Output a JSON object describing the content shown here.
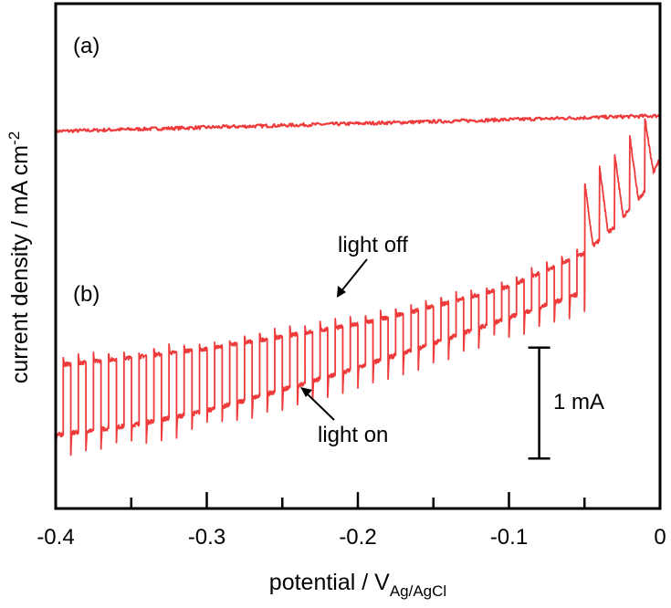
{
  "chart_data": {
    "type": "line",
    "xlabel_main": "potential / V",
    "xlabel_sub": "Ag/AgCl",
    "ylabel_main": "current density / mA cm",
    "ylabel_sup": "-2",
    "xlim": [
      -0.4,
      0
    ],
    "x_ticks": [
      "-0.4",
      "-0.3",
      "-0.2",
      "-0.1",
      "0"
    ],
    "x_tick_values": [
      -0.4,
      -0.3,
      -0.2,
      -0.1,
      0
    ],
    "x_minor_tick_values": [
      -0.35,
      -0.25,
      -0.15,
      -0.05
    ],
    "y_units": "mA (relative, no tick values printed)",
    "ylim": [
      -3.4,
      1.15
    ],
    "scale_bar": {
      "label": "1 mA",
      "value": 1,
      "y_from": -2.95,
      "y_to": -1.95,
      "x": -0.08
    },
    "series": [
      {
        "name": "(a)",
        "style": "flat",
        "x_start": -0.4,
        "x_end": 0,
        "y_start": 0.0,
        "y_end": 0.14,
        "noise": 0.015
      },
      {
        "name": "(b)",
        "style": "chopped",
        "chop_period_V": 0.01,
        "dark_current": {
          "x": [
            -0.4,
            -0.35,
            -0.3,
            -0.25,
            -0.2,
            -0.15,
            -0.1,
            -0.05,
            -0.03,
            -0.01,
            0
          ],
          "y": [
            -2.11,
            -2.04,
            -1.96,
            -1.85,
            -1.74,
            -1.58,
            -1.4,
            -1.1,
            -0.86,
            -0.54,
            -0.24
          ]
        },
        "light_current": {
          "x": [
            -0.4,
            -0.35,
            -0.3,
            -0.25,
            -0.2,
            -0.15,
            -0.1,
            -0.05
          ],
          "y": [
            -2.74,
            -2.65,
            -2.52,
            -2.33,
            -2.13,
            -1.91,
            -1.68,
            -1.45
          ]
        }
      }
    ],
    "annotations": [
      {
        "text": "(a)"
      },
      {
        "text": "(b)"
      },
      {
        "text": "light off",
        "x": -0.215,
        "y": -1.67
      },
      {
        "text": "light on",
        "x": -0.24,
        "y": -2.42
      }
    ],
    "colors": {
      "line": "#ee3a3a",
      "axis": "#000000"
    }
  }
}
